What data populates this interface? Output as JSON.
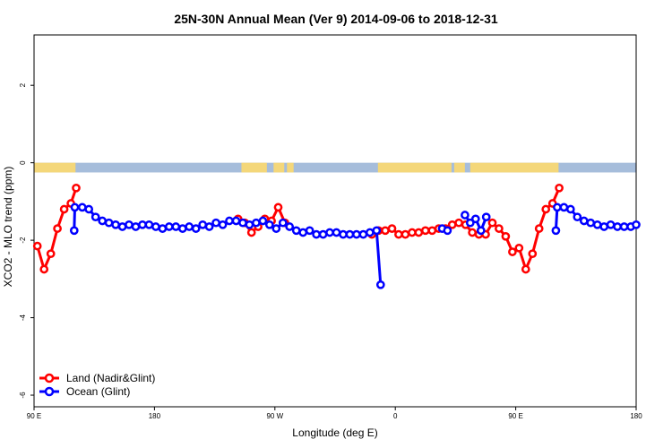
{
  "chart_data": {
    "type": "line",
    "title": "25N-30N Annual Mean (Ver 9)   2014-09-06 to 2018-12-31",
    "xlabel": "Longitude (deg E)",
    "ylabel": "XCO2 - MLO trend (ppm)",
    "xlim": [
      90,
      540
    ],
    "ylim": [
      -6.3,
      3.3
    ],
    "x_ticks": [
      {
        "value": 90,
        "label": "90 E"
      },
      {
        "value": 180,
        "label": "180"
      },
      {
        "value": 270,
        "label": "90 W"
      },
      {
        "value": 360,
        "label": "0"
      },
      {
        "value": 450,
        "label": "90 E"
      },
      {
        "value": 540,
        "label": "180"
      }
    ],
    "y_ticks": [
      {
        "value": 2,
        "label": "2"
      },
      {
        "value": 0,
        "label": "0"
      },
      {
        "value": -2,
        "label": "-2"
      },
      {
        "value": -4,
        "label": "-4"
      },
      {
        "value": -6,
        "label": "-6"
      }
    ],
    "grid": false,
    "legend_position": "bottom-left",
    "land_strip": {
      "y_top": 0,
      "y_bottom": -0.25,
      "land_color": "#f4d77a",
      "ocean_color": "#a6bddb",
      "land_segments": [
        [
          90,
          121
        ],
        [
          245,
          264
        ],
        [
          269,
          277
        ],
        [
          279,
          284
        ],
        [
          347,
          402
        ],
        [
          404,
          412
        ],
        [
          416,
          482
        ]
      ]
    },
    "series": [
      {
        "name": "Land (Nadir&Glint)",
        "color": "#ff0000",
        "segments": [
          {
            "x": [
              92.5,
              97.5,
              102.5,
              107.5,
              112.5,
              117.5,
              121.5
            ],
            "y": [
              -2.15,
              -2.75,
              -2.35,
              -1.7,
              -1.2,
              -1.05,
              -0.65
            ]
          },
          {
            "x": [
              242.5,
              247.5,
              252.5,
              257.5,
              262.5,
              267.5,
              272.5,
              277.5
            ],
            "y": [
              -1.45,
              -1.55,
              -1.8,
              -1.65,
              -1.45,
              -1.5,
              -1.15,
              -1.55
            ]
          },
          {
            "x": [
              342.5,
              347.5,
              352.5,
              357.5,
              362.5,
              367.5,
              372.5,
              377.5,
              382.5,
              387.5,
              392.5,
              397.5,
              402.5,
              407.5,
              412.5,
              417.5,
              422.5,
              427.5,
              432.5,
              437.5,
              442.5,
              447.5,
              452.5,
              457.5,
              462.5,
              467.5,
              472.5,
              477.5,
              482.5
            ],
            "y": [
              -1.85,
              -1.75,
              -1.75,
              -1.7,
              -1.85,
              -1.85,
              -1.8,
              -1.8,
              -1.75,
              -1.75,
              -1.7,
              -1.7,
              -1.6,
              -1.55,
              -1.6,
              -1.8,
              -1.85,
              -1.85,
              -1.55,
              -1.7,
              -1.9,
              -2.3,
              -2.2,
              -2.75,
              -2.35,
              -1.7,
              -1.2,
              -1.05,
              -0.65
            ]
          }
        ]
      },
      {
        "name": "Ocean (Glint)",
        "color": "#0000ff",
        "segments": [
          {
            "x": [
              120,
              120.5,
              126,
              131,
              136,
              141,
              146,
              151,
              156,
              161,
              166,
              171,
              176,
              181,
              186,
              191,
              196,
              201,
              206,
              211,
              216,
              221,
              226,
              231,
              236,
              241,
              246,
              251,
              256,
              261,
              266,
              271,
              276,
              281,
              286,
              291,
              296,
              301,
              306,
              311,
              316,
              321,
              326,
              331,
              336,
              341,
              346,
              349
            ],
            "y": [
              -1.75,
              -1.15,
              -1.15,
              -1.2,
              -1.4,
              -1.5,
              -1.55,
              -1.6,
              -1.65,
              -1.6,
              -1.65,
              -1.6,
              -1.6,
              -1.65,
              -1.7,
              -1.65,
              -1.65,
              -1.7,
              -1.65,
              -1.7,
              -1.6,
              -1.65,
              -1.55,
              -1.6,
              -1.5,
              -1.5,
              -1.55,
              -1.6,
              -1.55,
              -1.5,
              -1.6,
              -1.7,
              -1.55,
              -1.65,
              -1.75,
              -1.8,
              -1.75,
              -1.85,
              -1.85,
              -1.8,
              -1.8,
              -1.85,
              -1.85,
              -1.85,
              -1.85,
              -1.8,
              -1.75,
              -3.15
            ]
          },
          {
            "x": [
              395,
              399
            ],
            "y": [
              -1.7,
              -1.75
            ]
          },
          {
            "x": [
              412,
              416,
              420,
              424,
              428
            ],
            "y": [
              -1.35,
              -1.55,
              -1.45,
              -1.75,
              -1.4
            ]
          },
          {
            "x": [
              480,
              481,
              486,
              491,
              496,
              501,
              506,
              511,
              516,
              521,
              526,
              531,
              536,
              540
            ],
            "y": [
              -1.75,
              -1.15,
              -1.15,
              -1.2,
              -1.4,
              -1.5,
              -1.55,
              -1.6,
              -1.65,
              -1.6,
              -1.65,
              -1.65,
              -1.65,
              -1.6
            ]
          }
        ]
      }
    ]
  }
}
